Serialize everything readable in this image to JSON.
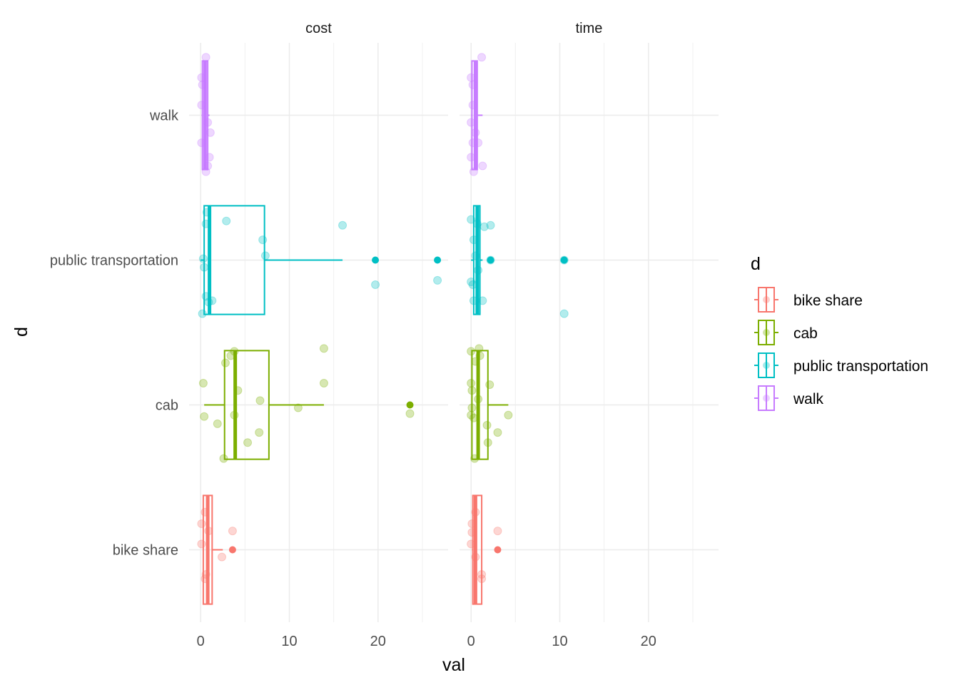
{
  "chart_data": {
    "type": "boxplot",
    "title": "",
    "xlabel": "val",
    "ylabel": "d",
    "facets": [
      "cost",
      "time"
    ],
    "categories": [
      "bike share",
      "cab",
      "public transportation",
      "walk"
    ],
    "x_ticks": [
      0,
      10,
      20
    ],
    "xlim": [
      -1.3,
      27.9
    ],
    "grid": true,
    "legend": {
      "title": "d",
      "position": "right",
      "entries": [
        "bike share",
        "cab",
        "public transportation",
        "walk"
      ]
    },
    "colors": {
      "bike share": "#F8766D",
      "cab": "#7CAE00",
      "public transportation": "#00BFC4",
      "walk": "#C77CFF"
    },
    "series": [
      {
        "facet": "cost",
        "category": "walk",
        "min": 0.1,
        "q1": 0.2,
        "median": 0.5,
        "q3": 0.8,
        "max": 1.0,
        "outliers": [],
        "points": [
          {
            "x": 0.6,
            "j": 0.4
          },
          {
            "x": 0.1,
            "j": 0.26
          },
          {
            "x": 0.2,
            "j": 0.21
          },
          {
            "x": 0.1,
            "j": 0.07
          },
          {
            "x": 0.8,
            "j": -0.05
          },
          {
            "x": 1.1,
            "j": -0.12
          },
          {
            "x": 0.1,
            "j": -0.19
          },
          {
            "x": 1.0,
            "j": -0.29
          },
          {
            "x": 0.8,
            "j": -0.35
          },
          {
            "x": 0.6,
            "j": -0.39
          }
        ]
      },
      {
        "facet": "cost",
        "category": "public transportation",
        "min": 0.0,
        "q1": 0.4,
        "median": 1.0,
        "q3": 7.2,
        "max": 16.0,
        "outliers": [
          19.7,
          26.7
        ],
        "points": [
          {
            "x": 0.7,
            "j": 0.33
          },
          {
            "x": 0.6,
            "j": 0.25
          },
          {
            "x": 2.9,
            "j": 0.27
          },
          {
            "x": 16.0,
            "j": 0.24
          },
          {
            "x": 7.0,
            "j": 0.14
          },
          {
            "x": 7.3,
            "j": 0.03
          },
          {
            "x": 0.3,
            "j": 0.01
          },
          {
            "x": 0.4,
            "j": -0.05
          },
          {
            "x": 19.7,
            "j": -0.17
          },
          {
            "x": 26.7,
            "j": -0.14
          },
          {
            "x": 0.6,
            "j": -0.25
          },
          {
            "x": 1.3,
            "j": -0.28
          },
          {
            "x": 0.9,
            "j": -0.29
          },
          {
            "x": 0.2,
            "j": -0.37
          }
        ]
      },
      {
        "facet": "cost",
        "category": "cab",
        "min": 0.4,
        "q1": 2.7,
        "median": 3.9,
        "q3": 7.7,
        "max": 13.9,
        "outliers": [
          23.6
        ],
        "points": [
          {
            "x": 3.8,
            "j": 0.37
          },
          {
            "x": 3.4,
            "j": 0.34
          },
          {
            "x": 2.8,
            "j": 0.29
          },
          {
            "x": 13.9,
            "j": 0.39
          },
          {
            "x": 0.3,
            "j": 0.15
          },
          {
            "x": 13.9,
            "j": 0.15
          },
          {
            "x": 4.2,
            "j": 0.1
          },
          {
            "x": 6.7,
            "j": 0.03
          },
          {
            "x": 11.0,
            "j": -0.02
          },
          {
            "x": 0.4,
            "j": -0.08
          },
          {
            "x": 1.9,
            "j": -0.13
          },
          {
            "x": 3.8,
            "j": -0.07
          },
          {
            "x": 6.6,
            "j": -0.19
          },
          {
            "x": 5.3,
            "j": -0.26
          },
          {
            "x": 2.6,
            "j": -0.37
          },
          {
            "x": 23.6,
            "j": -0.06
          }
        ]
      },
      {
        "facet": "cost",
        "category": "bike share",
        "min": 0.3,
        "q1": 0.3,
        "median": 0.8,
        "q3": 1.3,
        "max": 2.5,
        "outliers": [
          3.6
        ],
        "points": [
          {
            "x": 0.5,
            "j": 0.26
          },
          {
            "x": 0.1,
            "j": 0.18
          },
          {
            "x": 0.9,
            "j": 0.13
          },
          {
            "x": 0.1,
            "j": 0.04
          },
          {
            "x": 3.6,
            "j": 0.13
          },
          {
            "x": 2.4,
            "j": -0.05
          },
          {
            "x": 0.6,
            "j": -0.17
          },
          {
            "x": 0.5,
            "j": -0.2
          }
        ]
      },
      {
        "facet": "time",
        "category": "walk",
        "min": 0.0,
        "q1": 0.1,
        "median": 0.5,
        "q3": 0.7,
        "max": 1.3,
        "outliers": [],
        "points": [
          {
            "x": 1.2,
            "j": 0.4
          },
          {
            "x": 0.0,
            "j": 0.26
          },
          {
            "x": 0.2,
            "j": 0.21
          },
          {
            "x": 0.2,
            "j": 0.07
          },
          {
            "x": 0.0,
            "j": -0.05
          },
          {
            "x": 0.5,
            "j": -0.12
          },
          {
            "x": 0.2,
            "j": -0.19
          },
          {
            "x": 0.8,
            "j": -0.19
          },
          {
            "x": 0.0,
            "j": -0.29
          },
          {
            "x": 1.3,
            "j": -0.35
          },
          {
            "x": 0.3,
            "j": -0.39
          }
        ]
      },
      {
        "facet": "time",
        "category": "public transportation",
        "min": 0.0,
        "q1": 0.3,
        "median": 0.7,
        "q3": 1.0,
        "max": 1.3,
        "outliers": [
          2.2,
          10.5
        ],
        "points": [
          {
            "x": 0.0,
            "j": 0.28
          },
          {
            "x": 0.7,
            "j": 0.25
          },
          {
            "x": 1.5,
            "j": 0.23
          },
          {
            "x": 2.2,
            "j": 0.24
          },
          {
            "x": 0.3,
            "j": 0.14
          },
          {
            "x": 0.5,
            "j": 0.03
          },
          {
            "x": 0.8,
            "j": -0.07
          },
          {
            "x": 0.0,
            "j": -0.15
          },
          {
            "x": 0.2,
            "j": -0.17
          },
          {
            "x": 0.3,
            "j": -0.28
          },
          {
            "x": 1.3,
            "j": -0.28
          },
          {
            "x": 2.2,
            "j": 0.0
          },
          {
            "x": 10.5,
            "j": 0.0
          },
          {
            "x": 10.5,
            "j": -0.37
          }
        ]
      },
      {
        "facet": "time",
        "category": "cab",
        "min": 0.1,
        "q1": 0.1,
        "median": 0.8,
        "q3": 1.9,
        "max": 4.2,
        "outliers": [],
        "points": [
          {
            "x": 0.0,
            "j": 0.37
          },
          {
            "x": 0.9,
            "j": 0.39
          },
          {
            "x": 1.0,
            "j": 0.34
          },
          {
            "x": 0.5,
            "j": 0.3
          },
          {
            "x": 0.0,
            "j": 0.15
          },
          {
            "x": 2.1,
            "j": 0.14
          },
          {
            "x": 0.1,
            "j": 0.1
          },
          {
            "x": 0.8,
            "j": 0.04
          },
          {
            "x": 0.1,
            "j": -0.02
          },
          {
            "x": 0.0,
            "j": -0.07
          },
          {
            "x": 0.3,
            "j": -0.09
          },
          {
            "x": 4.2,
            "j": -0.07
          },
          {
            "x": 1.8,
            "j": -0.14
          },
          {
            "x": 3.0,
            "j": -0.19
          },
          {
            "x": 1.9,
            "j": -0.26
          },
          {
            "x": 0.4,
            "j": -0.37
          }
        ]
      },
      {
        "facet": "time",
        "category": "bike share",
        "min": 0.1,
        "q1": 0.2,
        "median": 0.5,
        "q3": 1.2,
        "max": 1.2,
        "outliers": [
          3.0
        ],
        "points": [
          {
            "x": 0.5,
            "j": 0.26
          },
          {
            "x": 0.1,
            "j": 0.18
          },
          {
            "x": 0.1,
            "j": 0.12
          },
          {
            "x": 3.0,
            "j": 0.13
          },
          {
            "x": 0.0,
            "j": 0.04
          },
          {
            "x": 0.5,
            "j": -0.05
          },
          {
            "x": 1.2,
            "j": -0.17
          },
          {
            "x": 1.2,
            "j": -0.2
          }
        ]
      }
    ]
  }
}
